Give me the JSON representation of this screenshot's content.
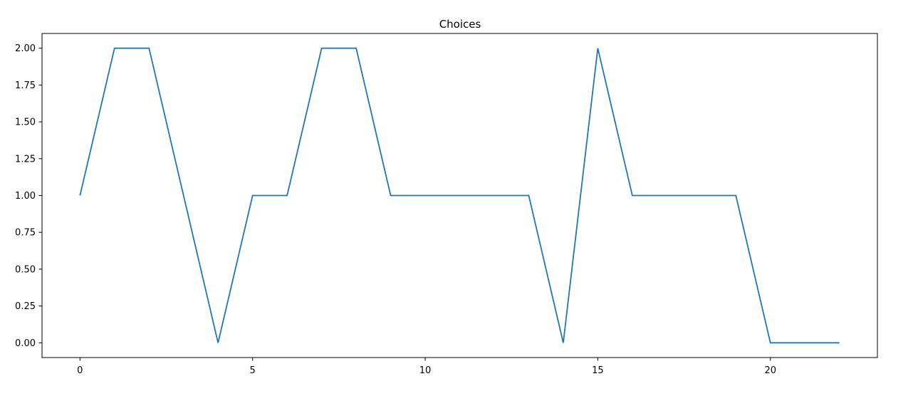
{
  "chart_data": {
    "type": "line",
    "title": "Choices",
    "xlabel": "",
    "ylabel": "",
    "xlim": [
      -1.1,
      23.1
    ],
    "ylim": [
      -0.1,
      2.1
    ],
    "x_ticks": [
      0,
      5,
      10,
      15,
      20
    ],
    "x_tick_labels": [
      "0",
      "5",
      "10",
      "15",
      "20"
    ],
    "y_ticks": [
      0,
      0.25,
      0.5,
      0.75,
      1.0,
      1.25,
      1.5,
      1.75,
      2.0
    ],
    "y_tick_labels": [
      "0.00",
      "0.25",
      "0.50",
      "0.75",
      "1.00",
      "1.25",
      "1.50",
      "1.75",
      "2.00"
    ],
    "grid": false,
    "series": [
      {
        "color": "#1f77b4",
        "x": [
          0,
          1,
          2,
          3,
          4,
          5,
          6,
          7,
          8,
          9,
          10,
          11,
          12,
          13,
          14,
          15,
          16,
          17,
          18,
          19,
          20,
          21,
          22
        ],
        "values": [
          1,
          2,
          2,
          1,
          0,
          1,
          1,
          2,
          2,
          1,
          1,
          1,
          1,
          1,
          0,
          2,
          1,
          1,
          1,
          1,
          0,
          0,
          0
        ]
      }
    ]
  }
}
